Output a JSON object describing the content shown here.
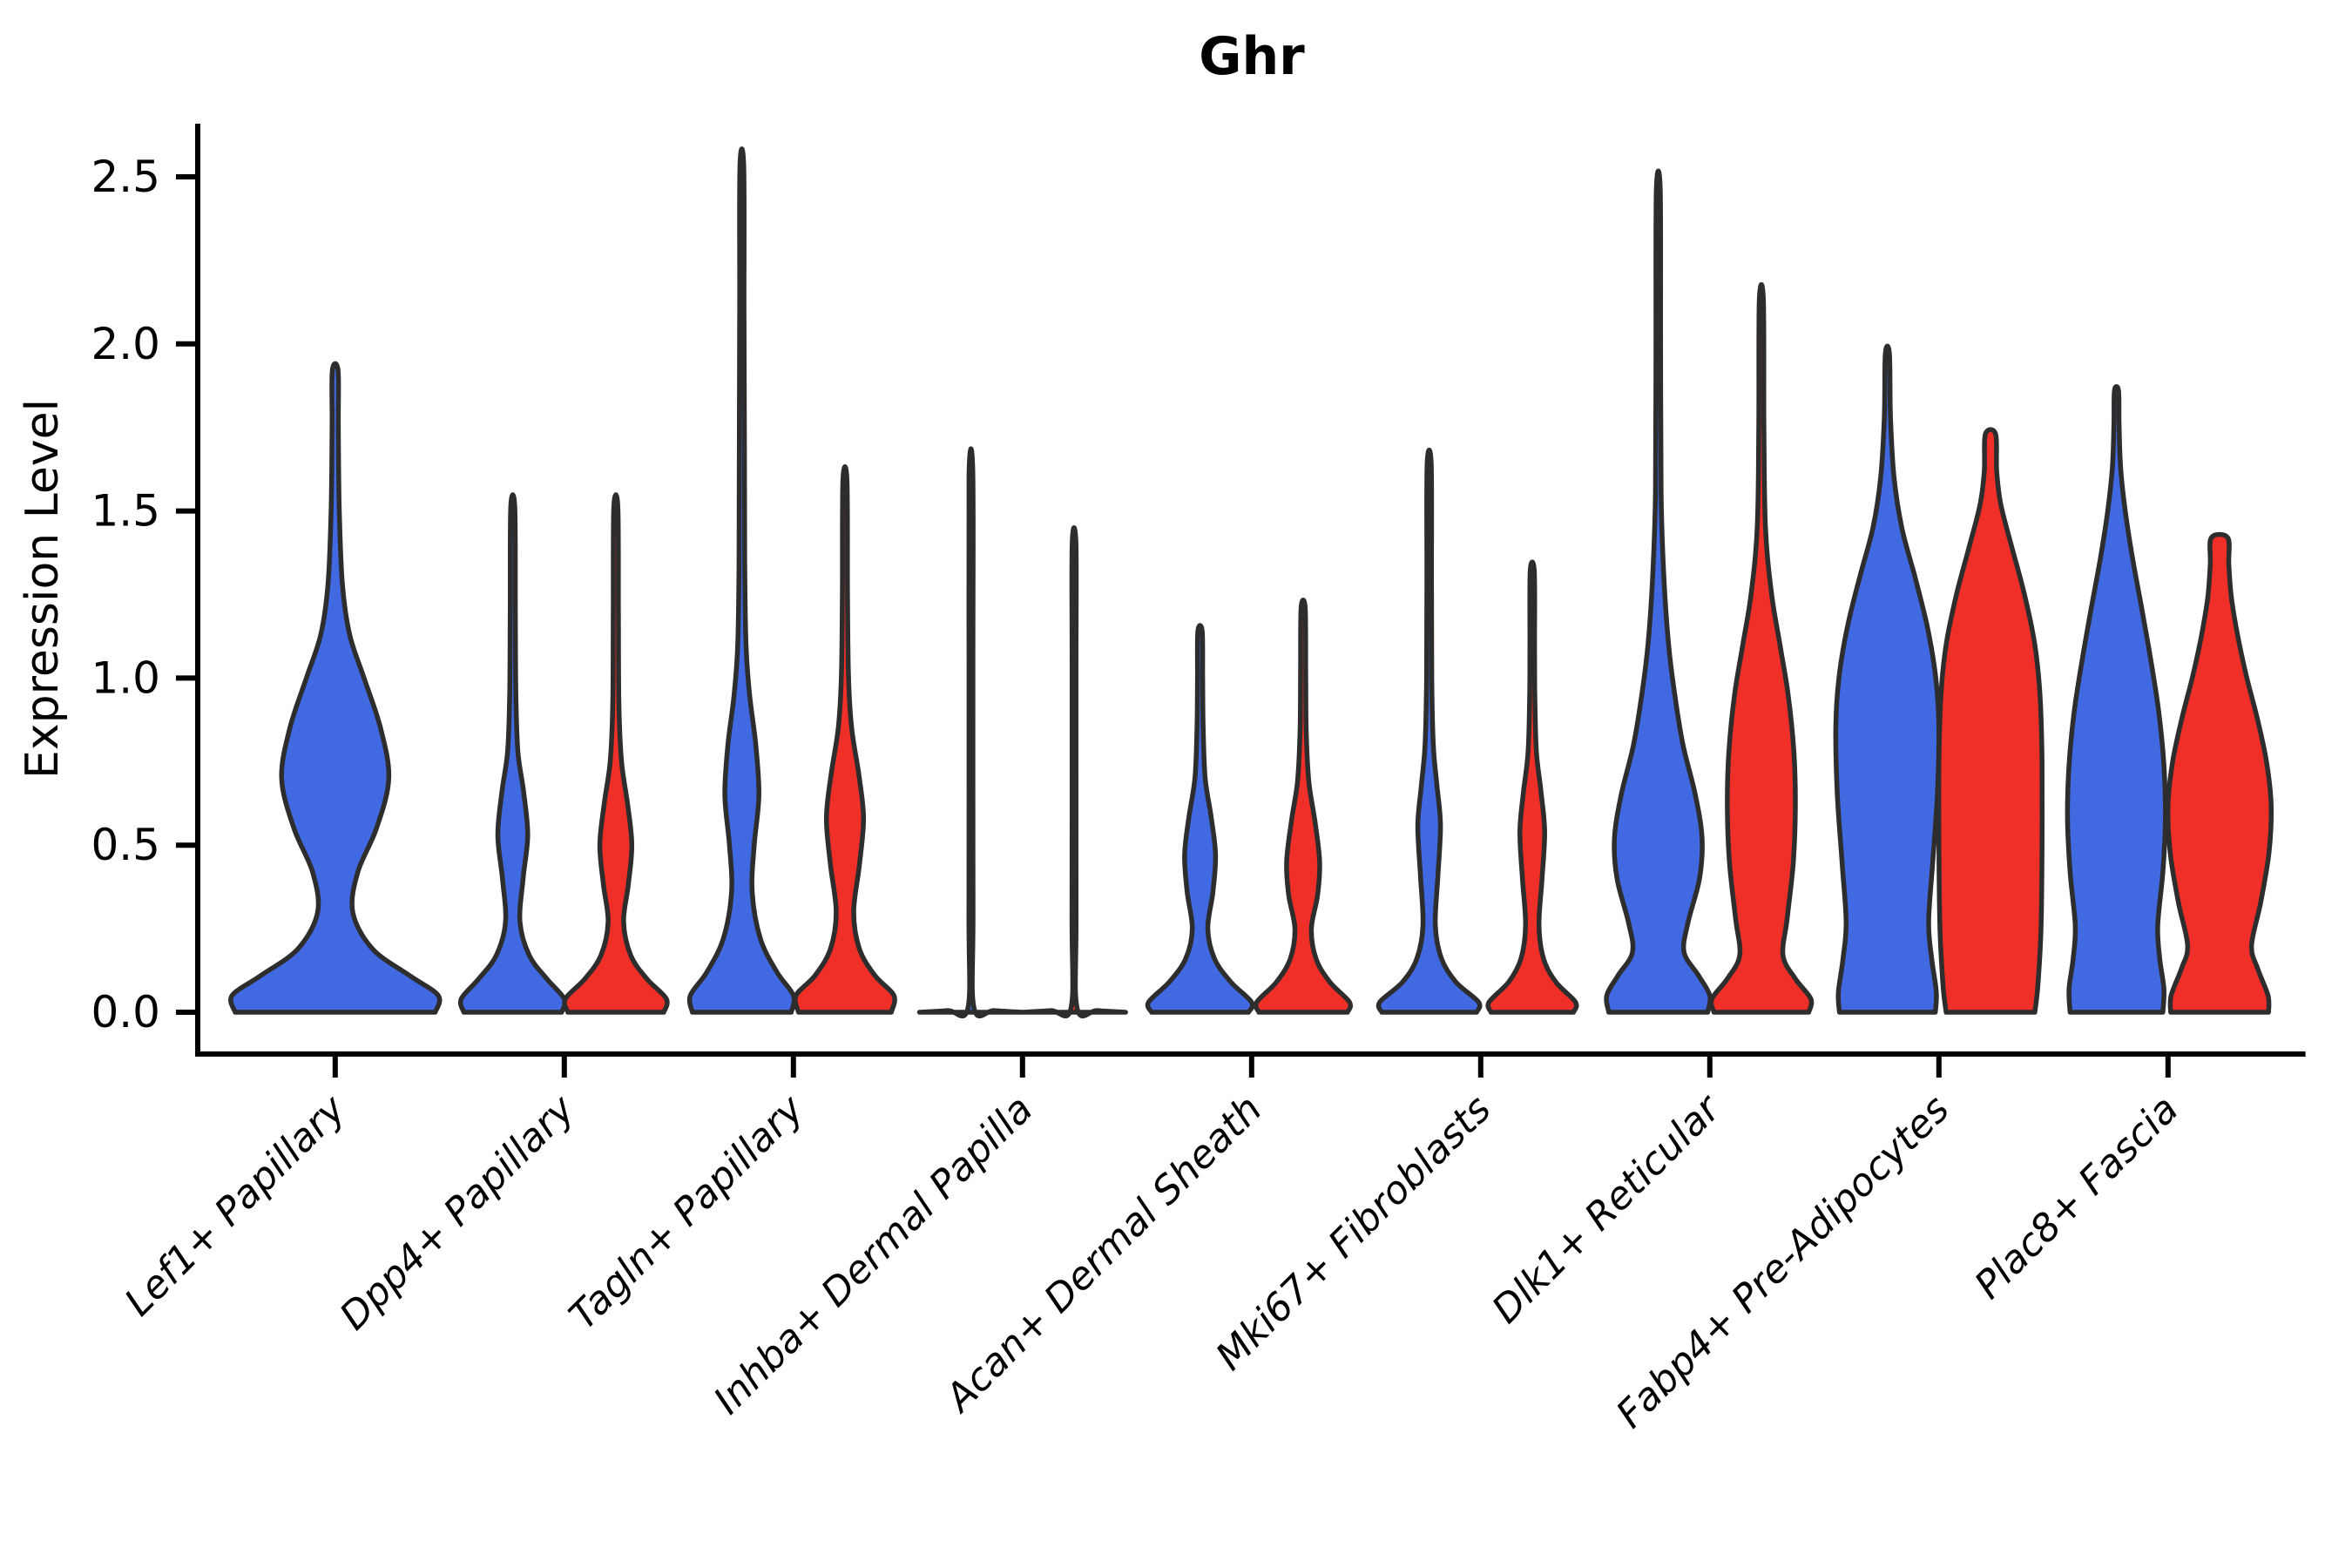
{
  "title": "Ghr",
  "axes": {
    "ylabel": "Expression Level",
    "ytick_labels": [
      "0.0",
      "0.5",
      "1.0",
      "1.5",
      "2.0",
      "2.5"
    ],
    "ytick_values": [
      0,
      0.5,
      1.0,
      1.5,
      2.0,
      2.5
    ]
  },
  "chart_data": {
    "type": "violin",
    "title": "Ghr",
    "xlabel": "",
    "ylabel": "Expression Level",
    "ylim": [
      -0.125,
      2.66
    ],
    "yticks": [
      0,
      0.5,
      1.0,
      1.5,
      2.0,
      2.5
    ],
    "grid": false,
    "legend_position": "none",
    "split_colors": {
      "blue": "#4169E1",
      "red": "#F03028"
    },
    "outline_color": "#2D2D2D",
    "categories": [
      "Lef1+ Papillary",
      "Dpp4+ Papillary",
      "Tagln+ Papillary",
      "Inhba+ Dermal Papilla",
      "Acan+ Dermal Sheath",
      "Mki67+ Fibroblasts",
      "Dlk1+ Reticular",
      "Fabp4+ Pre-Adipocytes",
      "Plac8+ Fascia"
    ],
    "violins": [
      {
        "category": "Lef1+ Papillary",
        "category_index": 0,
        "color_key": "blue",
        "offset_units": 0,
        "width_units": 0.9,
        "peak_expression": 1.92,
        "profile_value_halfwidth": [
          [
            0,
            0.97
          ],
          [
            0.05,
            1.0
          ],
          [
            0.11,
            0.72
          ],
          [
            0.19,
            0.36
          ],
          [
            0.3,
            0.17
          ],
          [
            0.42,
            0.22
          ],
          [
            0.55,
            0.4
          ],
          [
            0.7,
            0.52
          ],
          [
            0.85,
            0.44
          ],
          [
            1.0,
            0.28
          ],
          [
            1.13,
            0.14
          ],
          [
            1.28,
            0.07
          ],
          [
            1.5,
            0.04
          ],
          [
            1.75,
            0.03
          ],
          [
            1.92,
            0.028
          ]
        ]
      },
      {
        "category": "Dpp4+ Papillary",
        "category_index": 1,
        "color_key": "blue",
        "offset_units": -0.225,
        "width_units": 0.45,
        "peak_expression": 1.51,
        "profile_value_halfwidth": [
          [
            0,
            0.95
          ],
          [
            0.04,
            1.0
          ],
          [
            0.1,
            0.66
          ],
          [
            0.17,
            0.32
          ],
          [
            0.27,
            0.14
          ],
          [
            0.4,
            0.2
          ],
          [
            0.53,
            0.29
          ],
          [
            0.66,
            0.21
          ],
          [
            0.78,
            0.1
          ],
          [
            0.95,
            0.06
          ],
          [
            1.2,
            0.05
          ],
          [
            1.51,
            0.04
          ]
        ]
      },
      {
        "category": "Dpp4+ Papillary",
        "category_index": 1,
        "color_key": "red",
        "offset_units": 0.225,
        "width_units": 0.45,
        "peak_expression": 1.51,
        "profile_value_halfwidth": [
          [
            0,
            0.93
          ],
          [
            0.04,
            0.98
          ],
          [
            0.1,
            0.6
          ],
          [
            0.17,
            0.29
          ],
          [
            0.27,
            0.15
          ],
          [
            0.38,
            0.24
          ],
          [
            0.5,
            0.31
          ],
          [
            0.62,
            0.23
          ],
          [
            0.75,
            0.11
          ],
          [
            0.92,
            0.06
          ],
          [
            1.2,
            0.05
          ],
          [
            1.51,
            0.04
          ]
        ]
      },
      {
        "category": "Tagln+ Papillary",
        "category_index": 2,
        "color_key": "blue",
        "offset_units": -0.225,
        "width_units": 0.45,
        "peak_expression": 2.53,
        "profile_value_halfwidth": [
          [
            0,
            0.96
          ],
          [
            0.05,
            1.0
          ],
          [
            0.12,
            0.68
          ],
          [
            0.22,
            0.36
          ],
          [
            0.36,
            0.2
          ],
          [
            0.5,
            0.24
          ],
          [
            0.65,
            0.33
          ],
          [
            0.8,
            0.27
          ],
          [
            0.95,
            0.15
          ],
          [
            1.1,
            0.08
          ],
          [
            1.35,
            0.055
          ],
          [
            1.7,
            0.05
          ],
          [
            2.1,
            0.042
          ],
          [
            2.53,
            0.035
          ]
        ]
      },
      {
        "category": "Tagln+ Papillary",
        "category_index": 2,
        "color_key": "red",
        "offset_units": 0.225,
        "width_units": 0.45,
        "peak_expression": 1.59,
        "profile_value_halfwidth": [
          [
            0,
            0.9
          ],
          [
            0.05,
            0.95
          ],
          [
            0.11,
            0.58
          ],
          [
            0.19,
            0.28
          ],
          [
            0.3,
            0.17
          ],
          [
            0.44,
            0.28
          ],
          [
            0.58,
            0.36
          ],
          [
            0.71,
            0.27
          ],
          [
            0.85,
            0.13
          ],
          [
            1.0,
            0.07
          ],
          [
            1.25,
            0.05
          ],
          [
            1.59,
            0.04
          ]
        ]
      },
      {
        "category": "Inhba+ Dermal Papilla",
        "category_index": 3,
        "color_key": "blue",
        "offset_units": -0.225,
        "width_units": 0.45,
        "peak_expression": 1.61,
        "profile_value_halfwidth": [
          [
            0,
            1.0
          ],
          [
            0.005,
            0.45
          ],
          [
            0.012,
            0.06
          ],
          [
            0.3,
            0.04
          ],
          [
            1.0,
            0.038
          ],
          [
            1.61,
            0.036
          ]
        ]
      },
      {
        "category": "Inhba+ Dermal Papilla",
        "category_index": 3,
        "color_key": "red",
        "offset_units": 0.225,
        "width_units": 0.45,
        "peak_expression": 1.4,
        "profile_value_halfwidth": [
          [
            0,
            1.0
          ],
          [
            0.005,
            0.45
          ],
          [
            0.012,
            0.06
          ],
          [
            0.3,
            0.04
          ],
          [
            1.0,
            0.038
          ],
          [
            1.4,
            0.036
          ]
        ]
      },
      {
        "category": "Acan+ Dermal Sheath",
        "category_index": 4,
        "color_key": "blue",
        "offset_units": -0.225,
        "width_units": 0.45,
        "peak_expression": 1.14,
        "profile_value_halfwidth": [
          [
            0,
            0.94
          ],
          [
            0.03,
            1.0
          ],
          [
            0.09,
            0.6
          ],
          [
            0.16,
            0.28
          ],
          [
            0.25,
            0.15
          ],
          [
            0.36,
            0.25
          ],
          [
            0.47,
            0.3
          ],
          [
            0.58,
            0.22
          ],
          [
            0.7,
            0.1
          ],
          [
            0.85,
            0.06
          ],
          [
            1.0,
            0.05
          ],
          [
            1.14,
            0.042
          ]
        ]
      },
      {
        "category": "Acan+ Dermal Sheath",
        "category_index": 4,
        "color_key": "red",
        "offset_units": 0.225,
        "width_units": 0.45,
        "peak_expression": 1.21,
        "profile_value_halfwidth": [
          [
            0,
            0.86
          ],
          [
            0.03,
            0.9
          ],
          [
            0.09,
            0.52
          ],
          [
            0.16,
            0.25
          ],
          [
            0.25,
            0.16
          ],
          [
            0.35,
            0.28
          ],
          [
            0.45,
            0.32
          ],
          [
            0.57,
            0.23
          ],
          [
            0.69,
            0.11
          ],
          [
            0.84,
            0.06
          ],
          [
            1.02,
            0.05
          ],
          [
            1.21,
            0.04
          ]
        ]
      },
      {
        "category": "Mki67+ Fibroblasts",
        "category_index": 5,
        "color_key": "blue",
        "offset_units": -0.225,
        "width_units": 0.45,
        "peak_expression": 1.64,
        "profile_value_halfwidth": [
          [
            0,
            0.92
          ],
          [
            0.03,
            0.96
          ],
          [
            0.09,
            0.52
          ],
          [
            0.16,
            0.24
          ],
          [
            0.26,
            0.12
          ],
          [
            0.41,
            0.17
          ],
          [
            0.56,
            0.22
          ],
          [
            0.68,
            0.15
          ],
          [
            0.8,
            0.08
          ],
          [
            1.0,
            0.05
          ],
          [
            1.3,
            0.045
          ],
          [
            1.64,
            0.04
          ]
        ]
      },
      {
        "category": "Mki67+ Fibroblasts",
        "category_index": 5,
        "color_key": "red",
        "offset_units": 0.225,
        "width_units": 0.45,
        "peak_expression": 1.32,
        "profile_value_halfwidth": [
          [
            0,
            0.8
          ],
          [
            0.03,
            0.84
          ],
          [
            0.09,
            0.46
          ],
          [
            0.16,
            0.22
          ],
          [
            0.26,
            0.13
          ],
          [
            0.4,
            0.19
          ],
          [
            0.54,
            0.24
          ],
          [
            0.66,
            0.17
          ],
          [
            0.78,
            0.08
          ],
          [
            0.95,
            0.05
          ],
          [
            1.1,
            0.045
          ],
          [
            1.32,
            0.04
          ]
        ]
      },
      {
        "category": "Dlk1+ Reticular",
        "category_index": 6,
        "color_key": "blue",
        "offset_units": -0.225,
        "width_units": 0.45,
        "peak_expression": 2.46,
        "profile_value_halfwidth": [
          [
            0,
            0.96
          ],
          [
            0.05,
            1.0
          ],
          [
            0.11,
            0.78
          ],
          [
            0.18,
            0.5
          ],
          [
            0.27,
            0.58
          ],
          [
            0.4,
            0.8
          ],
          [
            0.52,
            0.85
          ],
          [
            0.65,
            0.72
          ],
          [
            0.8,
            0.48
          ],
          [
            0.95,
            0.32
          ],
          [
            1.1,
            0.2
          ],
          [
            1.3,
            0.11
          ],
          [
            1.55,
            0.055
          ],
          [
            2.0,
            0.045
          ],
          [
            2.46,
            0.038
          ]
        ]
      },
      {
        "category": "Dlk1+ Reticular",
        "category_index": 6,
        "color_key": "red",
        "offset_units": 0.225,
        "width_units": 0.45,
        "peak_expression": 2.13,
        "profile_value_halfwidth": [
          [
            0,
            0.92
          ],
          [
            0.04,
            0.96
          ],
          [
            0.1,
            0.66
          ],
          [
            0.17,
            0.42
          ],
          [
            0.28,
            0.5
          ],
          [
            0.45,
            0.62
          ],
          [
            0.62,
            0.66
          ],
          [
            0.78,
            0.63
          ],
          [
            0.95,
            0.52
          ],
          [
            1.1,
            0.36
          ],
          [
            1.25,
            0.2
          ],
          [
            1.45,
            0.08
          ],
          [
            1.75,
            0.05
          ],
          [
            2.13,
            0.04
          ]
        ]
      },
      {
        "category": "Fabp4+ Pre-Adipocytes",
        "category_index": 7,
        "color_key": "blue",
        "offset_units": -0.225,
        "width_units": 0.45,
        "peak_expression": 1.97,
        "profile_value_halfwidth": [
          [
            0,
            0.93
          ],
          [
            0.06,
            0.95
          ],
          [
            0.16,
            0.86
          ],
          [
            0.27,
            0.8
          ],
          [
            0.45,
            0.88
          ],
          [
            0.65,
            0.97
          ],
          [
            0.85,
            1.0
          ],
          [
            1.0,
            0.94
          ],
          [
            1.15,
            0.78
          ],
          [
            1.3,
            0.54
          ],
          [
            1.45,
            0.28
          ],
          [
            1.6,
            0.13
          ],
          [
            1.78,
            0.06
          ],
          [
            1.97,
            0.04
          ]
        ]
      },
      {
        "category": "Fabp4+ Pre-Adipocytes",
        "category_index": 7,
        "color_key": "red",
        "offset_units": 0.225,
        "width_units": 0.45,
        "peak_expression": 1.73,
        "profile_value_halfwidth": [
          [
            0,
            0.86
          ],
          [
            0.08,
            0.92
          ],
          [
            0.25,
            0.98
          ],
          [
            0.5,
            1.0
          ],
          [
            0.75,
            1.0
          ],
          [
            0.95,
            0.96
          ],
          [
            1.1,
            0.86
          ],
          [
            1.25,
            0.66
          ],
          [
            1.4,
            0.4
          ],
          [
            1.52,
            0.2
          ],
          [
            1.62,
            0.12
          ],
          [
            1.73,
            0.1
          ]
        ]
      },
      {
        "category": "Plac8+ Fascia",
        "category_index": 8,
        "color_key": "blue",
        "offset_units": -0.225,
        "width_units": 0.45,
        "peak_expression": 1.86,
        "profile_value_halfwidth": [
          [
            0,
            0.9
          ],
          [
            0.07,
            0.92
          ],
          [
            0.16,
            0.84
          ],
          [
            0.26,
            0.8
          ],
          [
            0.42,
            0.9
          ],
          [
            0.58,
            0.95
          ],
          [
            0.74,
            0.92
          ],
          [
            0.9,
            0.82
          ],
          [
            1.05,
            0.67
          ],
          [
            1.2,
            0.5
          ],
          [
            1.36,
            0.31
          ],
          [
            1.5,
            0.17
          ],
          [
            1.63,
            0.08
          ],
          [
            1.76,
            0.05
          ],
          [
            1.86,
            0.04
          ]
        ]
      },
      {
        "category": "Plac8+ Fascia",
        "category_index": 8,
        "color_key": "red",
        "offset_units": 0.225,
        "width_units": 0.45,
        "peak_expression": 1.42,
        "profile_value_halfwidth": [
          [
            0,
            0.95
          ],
          [
            0.05,
            0.94
          ],
          [
            0.13,
            0.74
          ],
          [
            0.2,
            0.62
          ],
          [
            0.33,
            0.8
          ],
          [
            0.48,
            0.96
          ],
          [
            0.62,
            1.0
          ],
          [
            0.75,
            0.91
          ],
          [
            0.88,
            0.73
          ],
          [
            1.0,
            0.53
          ],
          [
            1.12,
            0.36
          ],
          [
            1.24,
            0.23
          ],
          [
            1.34,
            0.18
          ],
          [
            1.42,
            0.16
          ]
        ]
      }
    ]
  }
}
